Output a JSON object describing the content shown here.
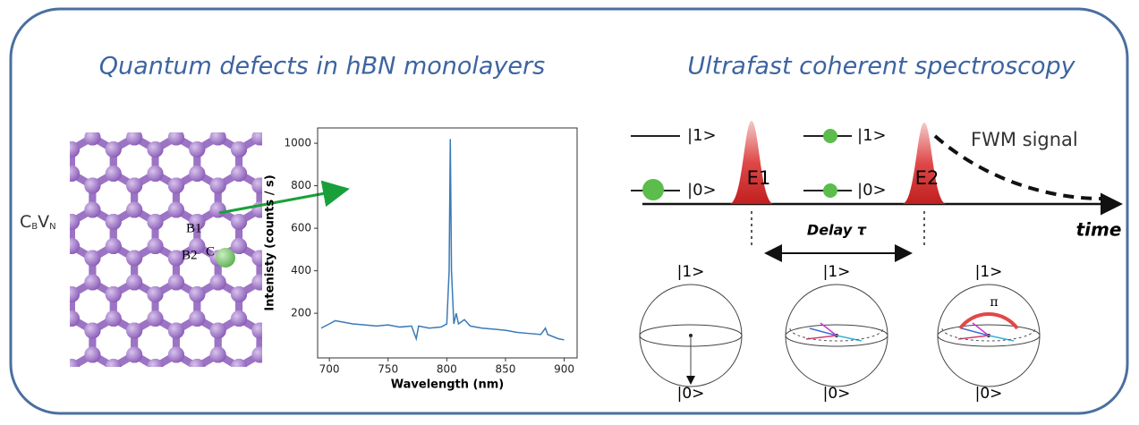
{
  "left_title": "Quantum defects in hBN monolayers",
  "right_title": "Ultrafast coherent spectroscopy",
  "lattice": {
    "defect": [
      "C",
      "B",
      "V",
      "N"
    ],
    "sites": [
      "B1",
      "B2",
      "C"
    ]
  },
  "spectrum": {
    "type": "line",
    "xlabel": "Wavelength (nm)",
    "ylabel": "Intenisty (counts / s)",
    "x": [
      693,
      700,
      705,
      710,
      720,
      730,
      740,
      750,
      760,
      770,
      774,
      776,
      785,
      795,
      800,
      802,
      803,
      804,
      806,
      808,
      810,
      815,
      820,
      830,
      840,
      850,
      860,
      870,
      880,
      884,
      886,
      895,
      900
    ],
    "series": [
      {
        "color": "#3a7ab8",
        "values": [
          130,
          150,
          165,
          160,
          150,
          145,
          140,
          145,
          135,
          140,
          80,
          140,
          130,
          135,
          150,
          400,
          1020,
          400,
          150,
          200,
          150,
          170,
          140,
          130,
          125,
          120,
          110,
          105,
          100,
          130,
          100,
          80,
          75
        ]
      }
    ],
    "xlim": [
      690,
      911
    ],
    "ylim": [
      -10,
      1072
    ],
    "xticks": [
      700,
      750,
      800,
      850,
      900
    ],
    "yticks": [
      200,
      400,
      600,
      800,
      1000
    ]
  },
  "states_before": {
    "upper": "|1>",
    "lower": "|0>"
  },
  "states_after": {
    "upper": "|1>",
    "lower": "|0>"
  },
  "pulses": [
    "E1",
    "E2"
  ],
  "signal": "FWM signal",
  "delay": "Delay τ",
  "time_label": "time",
  "bloch": [
    {
      "top": "|1>",
      "bottom": "|0>"
    },
    {
      "top": "|1>",
      "bottom": "|0>"
    },
    {
      "top": "|1>",
      "bottom": "|0>",
      "angle": "π"
    }
  ]
}
